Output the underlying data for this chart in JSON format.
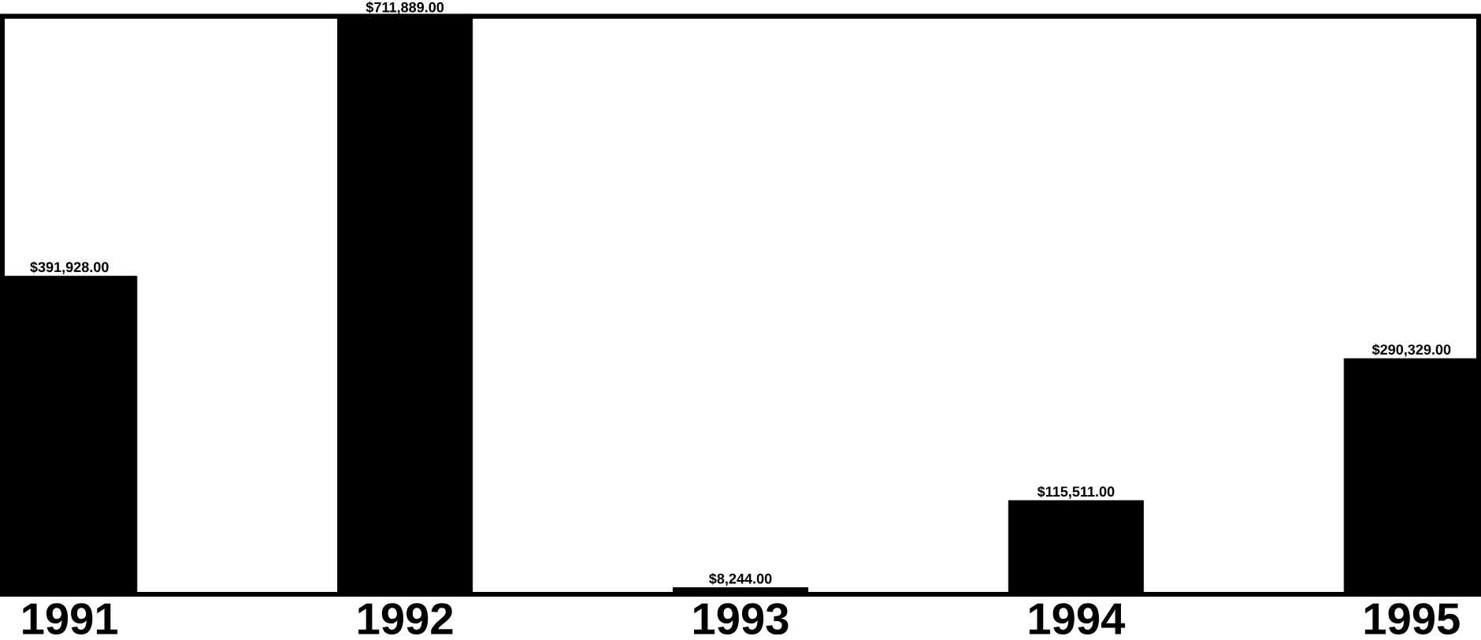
{
  "chart_data": {
    "type": "bar",
    "categories": [
      "1991",
      "1992",
      "1993",
      "1994",
      "1995"
    ],
    "values": [
      391928,
      711889,
      8244,
      115511,
      290329
    ],
    "value_labels": [
      "$391,928.00",
      "$711,889.00",
      "$8,244.00",
      "$115,511.00",
      "$290,329.00"
    ],
    "color": "#000000",
    "grid": false,
    "tick_labels": "x"
  }
}
